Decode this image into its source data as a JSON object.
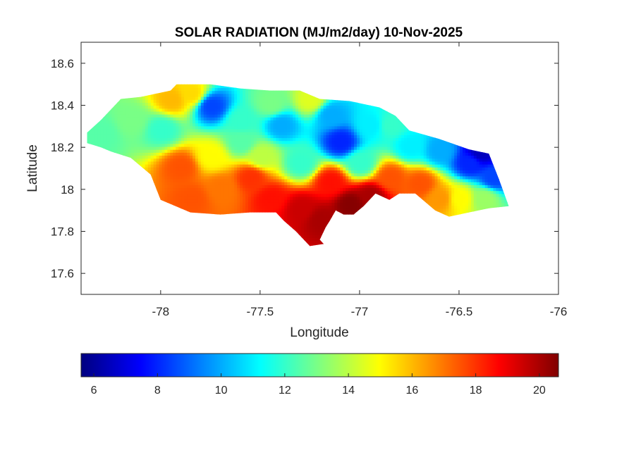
{
  "chart_data": {
    "type": "heatmap",
    "title": "SOLAR RADIATION (MJ/m2/day) 10-Nov-2025",
    "xlabel": "Longitude",
    "ylabel": "Latitude",
    "xlim": [
      -78.4,
      -76
    ],
    "ylim": [
      17.5,
      18.7
    ],
    "xticks": [
      -78,
      -77.5,
      -77,
      -76.5,
      -76
    ],
    "xtick_labels": [
      "-78",
      "-77.5",
      "-77",
      "-76.5",
      "-76"
    ],
    "yticks": [
      17.6,
      17.8,
      18,
      18.2,
      18.4,
      18.6
    ],
    "ytick_labels": [
      "17.6",
      "17.8",
      "18",
      "18.2",
      "18.4",
      "18.6"
    ],
    "grid": false,
    "colormap": "jet",
    "colorbar": {
      "orientation": "horizontal",
      "placement": "below",
      "range": [
        5.6,
        20.6
      ],
      "ticks": [
        6,
        8,
        10,
        12,
        14,
        16,
        18,
        20
      ],
      "tick_labels": [
        "6",
        "8",
        "10",
        "12",
        "14",
        "16",
        "18",
        "20"
      ]
    },
    "outline": [
      [
        -78.37,
        18.27
      ],
      [
        -78.3,
        18.33
      ],
      [
        -78.2,
        18.43
      ],
      [
        -78.1,
        18.44
      ],
      [
        -77.95,
        18.47
      ],
      [
        -77.92,
        18.5
      ],
      [
        -77.75,
        18.5
      ],
      [
        -77.6,
        18.48
      ],
      [
        -77.45,
        18.47
      ],
      [
        -77.3,
        18.47
      ],
      [
        -77.2,
        18.43
      ],
      [
        -77.05,
        18.42
      ],
      [
        -76.9,
        18.39
      ],
      [
        -76.82,
        18.35
      ],
      [
        -76.75,
        18.28
      ],
      [
        -76.6,
        18.24
      ],
      [
        -76.45,
        18.19
      ],
      [
        -76.35,
        18.17
      ],
      [
        -76.3,
        18.05
      ],
      [
        -76.25,
        17.92
      ],
      [
        -76.35,
        17.91
      ],
      [
        -76.45,
        17.89
      ],
      [
        -76.55,
        17.87
      ],
      [
        -76.62,
        17.9
      ],
      [
        -76.72,
        17.98
      ],
      [
        -76.8,
        17.98
      ],
      [
        -76.85,
        17.95
      ],
      [
        -76.92,
        17.98
      ],
      [
        -76.98,
        17.92
      ],
      [
        -77.03,
        17.88
      ],
      [
        -77.08,
        17.88
      ],
      [
        -77.12,
        17.9
      ],
      [
        -77.15,
        17.85
      ],
      [
        -77.17,
        17.82
      ],
      [
        -77.2,
        17.76
      ],
      [
        -77.18,
        17.74
      ],
      [
        -77.25,
        17.73
      ],
      [
        -77.32,
        17.8
      ],
      [
        -77.38,
        17.85
      ],
      [
        -77.42,
        17.89
      ],
      [
        -77.55,
        17.89
      ],
      [
        -77.7,
        17.88
      ],
      [
        -77.85,
        17.89
      ],
      [
        -78.0,
        17.95
      ],
      [
        -78.05,
        18.07
      ],
      [
        -78.15,
        18.15
      ],
      [
        -78.25,
        18.18
      ],
      [
        -78.3,
        18.2
      ],
      [
        -78.37,
        18.22
      ]
    ],
    "field_points": [
      {
        "lon": -78.3,
        "lat": 18.26,
        "value": 12.5
      },
      {
        "lon": -78.15,
        "lat": 18.32,
        "value": 13.0
      },
      {
        "lon": -78.0,
        "lat": 18.28,
        "value": 12.0
      },
      {
        "lon": -77.95,
        "lat": 18.42,
        "value": 16.0
      },
      {
        "lon": -77.85,
        "lat": 18.45,
        "value": 15.5
      },
      {
        "lon": -77.75,
        "lat": 18.39,
        "value": 8.5
      },
      {
        "lon": -77.6,
        "lat": 18.32,
        "value": 12.0
      },
      {
        "lon": -77.45,
        "lat": 18.4,
        "value": 13.0
      },
      {
        "lon": -77.4,
        "lat": 18.3,
        "value": 10.0
      },
      {
        "lon": -77.25,
        "lat": 18.42,
        "value": 14.5
      },
      {
        "lon": -77.15,
        "lat": 18.35,
        "value": 10.0
      },
      {
        "lon": -77.1,
        "lat": 18.22,
        "value": 8.0
      },
      {
        "lon": -76.95,
        "lat": 18.3,
        "value": 11.0
      },
      {
        "lon": -76.85,
        "lat": 18.3,
        "value": 12.0
      },
      {
        "lon": -76.75,
        "lat": 18.2,
        "value": 11.0
      },
      {
        "lon": -76.6,
        "lat": 18.18,
        "value": 10.0
      },
      {
        "lon": -76.45,
        "lat": 18.12,
        "value": 8.0
      },
      {
        "lon": -76.4,
        "lat": 18.17,
        "value": 6.5
      },
      {
        "lon": -76.33,
        "lat": 18.05,
        "value": 8.5
      },
      {
        "lon": -76.38,
        "lat": 17.95,
        "value": 13.5
      },
      {
        "lon": -76.5,
        "lat": 17.95,
        "value": 15.0
      },
      {
        "lon": -76.6,
        "lat": 17.95,
        "value": 16.5
      },
      {
        "lon": -76.7,
        "lat": 18.02,
        "value": 17.5
      },
      {
        "lon": -76.85,
        "lat": 18.05,
        "value": 17.5
      },
      {
        "lon": -76.95,
        "lat": 17.96,
        "value": 20.0
      },
      {
        "lon": -77.05,
        "lat": 17.92,
        "value": 20.5
      },
      {
        "lon": -77.15,
        "lat": 18.03,
        "value": 18.5
      },
      {
        "lon": -77.2,
        "lat": 17.85,
        "value": 20.0
      },
      {
        "lon": -77.3,
        "lat": 17.9,
        "value": 19.5
      },
      {
        "lon": -77.45,
        "lat": 17.95,
        "value": 18.5
      },
      {
        "lon": -77.55,
        "lat": 18.05,
        "value": 18.0
      },
      {
        "lon": -77.7,
        "lat": 18.0,
        "value": 17.0
      },
      {
        "lon": -77.85,
        "lat": 17.95,
        "value": 17.5
      },
      {
        "lon": -77.9,
        "lat": 18.1,
        "value": 17.5
      },
      {
        "lon": -77.75,
        "lat": 18.15,
        "value": 15.0
      },
      {
        "lon": -77.5,
        "lat": 18.15,
        "value": 14.0
      },
      {
        "lon": -77.3,
        "lat": 18.12,
        "value": 12.0
      },
      {
        "lon": -77.0,
        "lat": 18.12,
        "value": 12.0
      },
      {
        "lon": -77.6,
        "lat": 18.22,
        "value": 12.5
      }
    ]
  }
}
